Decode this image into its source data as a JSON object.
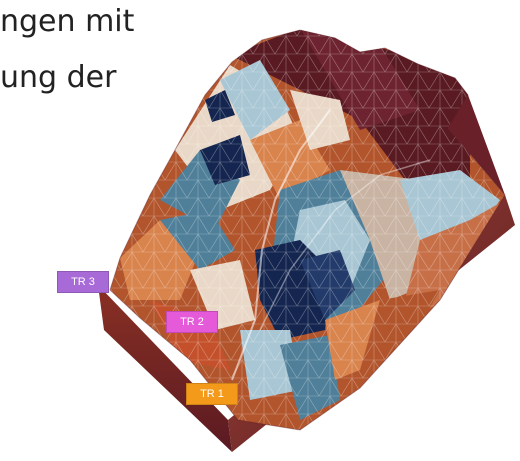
{
  "caption": {
    "line1": "ngen mit",
    "line2": "ung der"
  },
  "tags": [
    {
      "label": "TR 3",
      "color": "#a86ad6"
    },
    {
      "label": "TR 2",
      "color": "#e45ad8"
    },
    {
      "label": "TR 1",
      "color": "#f39a1a"
    }
  ],
  "colors": {
    "dark_brown": "#5a1a22",
    "rust": "#b2552c",
    "orange": "#d9834d",
    "cream": "#e9d8c7",
    "light_blue": "#a9c6d4",
    "steel_blue": "#4f7f99",
    "navy": "#14254f"
  }
}
